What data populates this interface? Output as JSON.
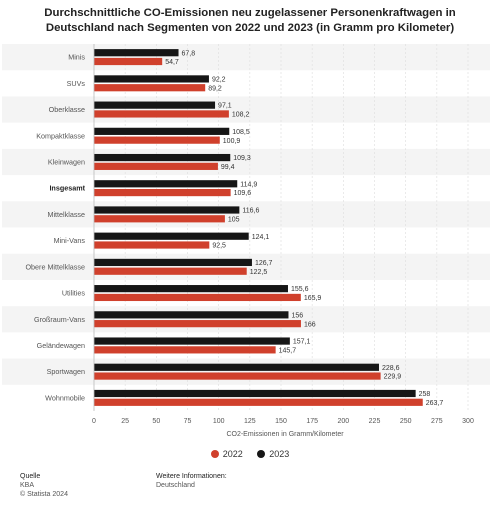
{
  "title": "Durchschnittliche CO-Emissionen neu zugelassener Personenkraftwagen in Deutschland nach Segmenten von 2022 und 2023 (in Gramm pro Kilometer)",
  "colors": {
    "s2022": "#d0402c",
    "s2023": "#161616",
    "band": "#f4f4f4",
    "grid": "#dddddd"
  },
  "chart_data": {
    "type": "bar",
    "orientation": "horizontal",
    "categories": [
      "Minis",
      "SUVs",
      "Oberklasse",
      "Kompaktklasse",
      "Kleinwagen",
      "Insgesamt",
      "Mittelklasse",
      "Mini-Vans",
      "Obere Mittelklasse",
      "Utilities",
      "Großraum-Vans",
      "Geländewagen",
      "Sportwagen",
      "Wohnmobile"
    ],
    "bold_categories": [
      "Insgesamt"
    ],
    "series": [
      {
        "name": "2023",
        "values": [
          67.8,
          92.2,
          97.1,
          108.5,
          109.3,
          114.9,
          116.6,
          124.1,
          126.7,
          155.6,
          156,
          157.1,
          228.6,
          258
        ]
      },
      {
        "name": "2022",
        "values": [
          54.7,
          89.2,
          108.2,
          100.9,
          99.4,
          109.6,
          105,
          92.5,
          122.5,
          165.9,
          166,
          145.7,
          229.9,
          263.7
        ]
      }
    ],
    "value_labels": {
      "2023": [
        "67,8",
        "92,2",
        "97,1",
        "108,5",
        "109,3",
        "114,9",
        "116,6",
        "124,1",
        "126,7",
        "155,6",
        "156",
        "157,1",
        "228,6",
        "258"
      ],
      "2022": [
        "54,7",
        "89,2",
        "108,2",
        "100,9",
        "99,4",
        "109,6",
        "105",
        "92,5",
        "122,5",
        "165,9",
        "166",
        "145,7",
        "229,9",
        "263,7"
      ]
    },
    "xlabel": "CO2-Emissionen in Gramm/Kilometer",
    "xlim": [
      0,
      300
    ],
    "xticks": [
      0,
      25,
      50,
      75,
      100,
      125,
      150,
      175,
      200,
      225,
      250,
      275,
      300
    ],
    "legend": [
      {
        "name": "2022",
        "color": "#d0402c"
      },
      {
        "name": "2023",
        "color": "#161616"
      }
    ],
    "legend_position": "bottom"
  },
  "footer": {
    "source_label": "Quelle",
    "source": "KBA",
    "copyright": "© Statista 2024",
    "more_label": "Weitere Informationen:",
    "more_value": "Deutschland"
  }
}
